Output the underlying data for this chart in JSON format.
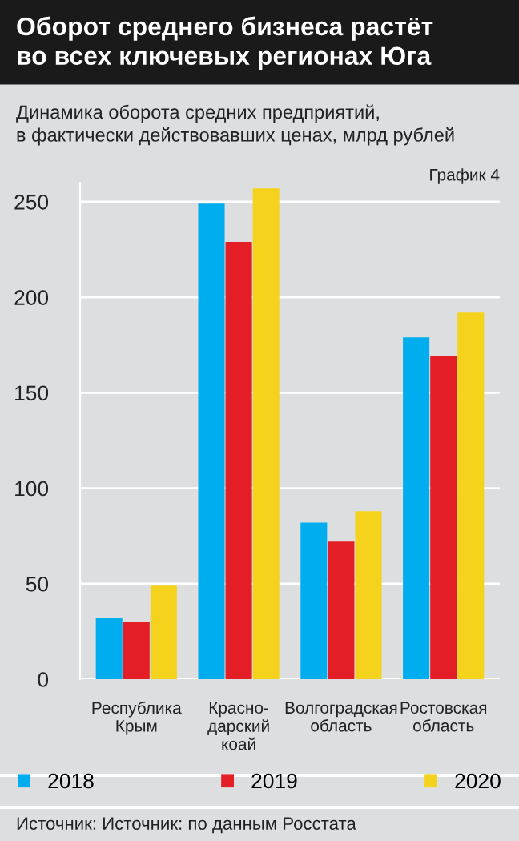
{
  "chart_data": {
    "type": "bar",
    "title": "Оборот среднего бизнеса растёт\nво всех ключевых регионах Юга",
    "subtitle": "Динамика оборота средних предприятий,\nв фактически действовавших ценах, млрд рублей",
    "categories": [
      "Республика\nКрым",
      "Красно-\nдарский\nкоай",
      "Волгоградская\nобласть",
      "Ростовская\nобласть"
    ],
    "series": [
      {
        "name": "2018",
        "color": "#00aeef",
        "values": [
          32,
          249,
          82,
          179
        ]
      },
      {
        "name": "2019",
        "color": "#e41e26",
        "values": [
          30,
          229,
          72,
          169
        ]
      },
      {
        "name": "2020",
        "color": "#f5d31c",
        "values": [
          49,
          257,
          88,
          192
        ]
      }
    ],
    "ylim": [
      0,
      260
    ],
    "yticks": [
      0,
      50,
      100,
      150,
      200,
      250
    ],
    "grid": "y",
    "legend": "bottom",
    "annotations": [
      "График 4",
      "Источник: Источник: по данным Росстата"
    ]
  }
}
